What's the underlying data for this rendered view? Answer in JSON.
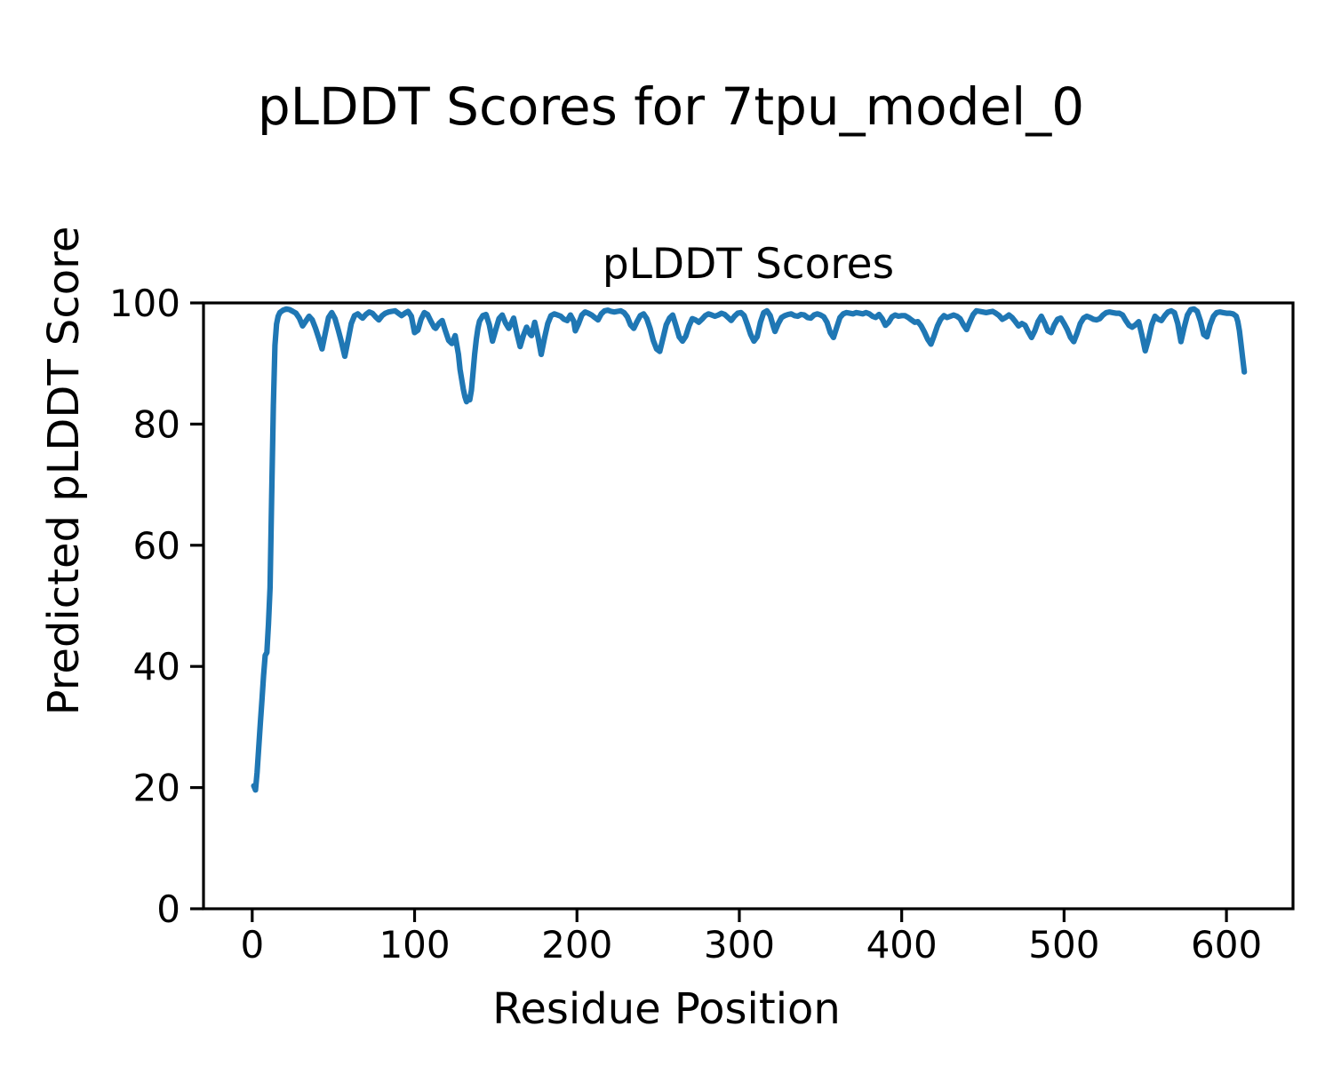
{
  "figure": {
    "suptitle": "pLDDT Scores for 7tpu_model_0",
    "background": "#ffffff",
    "spine_color": "#000000",
    "text_color": "#000000"
  },
  "chart_data": {
    "type": "line",
    "title": "pLDDT Scores",
    "suptitle": "pLDDT Scores for 7tpu_model_0",
    "xlabel": "Residue Position",
    "ylabel": "Predicted pLDDT Score",
    "xlim": [
      -30,
      641
    ],
    "ylim": [
      0,
      100
    ],
    "xticks": [
      0,
      100,
      200,
      300,
      400,
      500,
      600
    ],
    "yticks": [
      0,
      20,
      40,
      60,
      80,
      100
    ],
    "grid": false,
    "legend": "none",
    "line_color": "#1f77b4",
    "series_name": "pLDDT",
    "points": [
      [
        1,
        20.3
      ],
      [
        2,
        19.6
      ],
      [
        3,
        22.5
      ],
      [
        4,
        26.5
      ],
      [
        5,
        30.5
      ],
      [
        6,
        34.5
      ],
      [
        7,
        38.5
      ],
      [
        8,
        41.8
      ],
      [
        9,
        42.3
      ],
      [
        10,
        47
      ],
      [
        11,
        53
      ],
      [
        12,
        68
      ],
      [
        13,
        83
      ],
      [
        14,
        93
      ],
      [
        15,
        96.5
      ],
      [
        16,
        97.8
      ],
      [
        17,
        98.4
      ],
      [
        19,
        98.8
      ],
      [
        21,
        99
      ],
      [
        23,
        98.9
      ],
      [
        25,
        98.6
      ],
      [
        27,
        98.3
      ],
      [
        29,
        97.5
      ],
      [
        31,
        96.2
      ],
      [
        33,
        97
      ],
      [
        35,
        97.8
      ],
      [
        37,
        97.2
      ],
      [
        39,
        95.8
      ],
      [
        41,
        94.2
      ],
      [
        43,
        92.4
      ],
      [
        45,
        95
      ],
      [
        47,
        97.6
      ],
      [
        49,
        98.4
      ],
      [
        51,
        97.4
      ],
      [
        53,
        95.5
      ],
      [
        55,
        93.5
      ],
      [
        57,
        91.2
      ],
      [
        59,
        93.8
      ],
      [
        61,
        96.6
      ],
      [
        63,
        97.9
      ],
      [
        65,
        98.2
      ],
      [
        67,
        97.7
      ],
      [
        68,
        97.5
      ],
      [
        70,
        98.1
      ],
      [
        72,
        98.5
      ],
      [
        74,
        98.3
      ],
      [
        76,
        97.7
      ],
      [
        78,
        97.2
      ],
      [
        80,
        97.9
      ],
      [
        82,
        98.3
      ],
      [
        84,
        98.5
      ],
      [
        86,
        98.6
      ],
      [
        88,
        98.7
      ],
      [
        90,
        98.3
      ],
      [
        92,
        97.9
      ],
      [
        94,
        98.3
      ],
      [
        96,
        98.6
      ],
      [
        98,
        97.8
      ],
      [
        100,
        95.1
      ],
      [
        102,
        95.5
      ],
      [
        104,
        97.3
      ],
      [
        106,
        98.4
      ],
      [
        108,
        98.1
      ],
      [
        110,
        97
      ],
      [
        112,
        96
      ],
      [
        113,
        95.8
      ],
      [
        115,
        96.6
      ],
      [
        117,
        97.1
      ],
      [
        119,
        95.4
      ],
      [
        121,
        93.8
      ],
      [
        123,
        93.3
      ],
      [
        125,
        94.6
      ],
      [
        127,
        91.5
      ],
      [
        128,
        89
      ],
      [
        130,
        85.8
      ],
      [
        131,
        84.5
      ],
      [
        132,
        83.7
      ],
      [
        133,
        84.4
      ],
      [
        134,
        84
      ],
      [
        135,
        85.6
      ],
      [
        136,
        88.5
      ],
      [
        137,
        91.5
      ],
      [
        138,
        94
      ],
      [
        139,
        95.8
      ],
      [
        140,
        97
      ],
      [
        142,
        97.9
      ],
      [
        144,
        98.1
      ],
      [
        146,
        96.4
      ],
      [
        148,
        93.7
      ],
      [
        150,
        95.6
      ],
      [
        152,
        97.4
      ],
      [
        154,
        98
      ],
      [
        156,
        96.7
      ],
      [
        158,
        95.8
      ],
      [
        160,
        96.9
      ],
      [
        161,
        97.5
      ],
      [
        163,
        95
      ],
      [
        165,
        92.8
      ],
      [
        167,
        94.6
      ],
      [
        169,
        96
      ],
      [
        171,
        94.9
      ],
      [
        172,
        94.6
      ],
      [
        174,
        96.8
      ],
      [
        176,
        94.4
      ],
      [
        178,
        91.5
      ],
      [
        180,
        94.2
      ],
      [
        182,
        96.6
      ],
      [
        184,
        97.9
      ],
      [
        186,
        98.2
      ],
      [
        188,
        98
      ],
      [
        190,
        97.8
      ],
      [
        192,
        97.3
      ],
      [
        194,
        97.1
      ],
      [
        196,
        98
      ],
      [
        198,
        97
      ],
      [
        199,
        95.4
      ],
      [
        201,
        96.6
      ],
      [
        203,
        98
      ],
      [
        205,
        98.5
      ],
      [
        207,
        98.3
      ],
      [
        209,
        98
      ],
      [
        211,
        97.6
      ],
      [
        213,
        97.2
      ],
      [
        215,
        98.2
      ],
      [
        217,
        98.7
      ],
      [
        219,
        98.8
      ],
      [
        221,
        98.6
      ],
      [
        223,
        98.5
      ],
      [
        225,
        98.6
      ],
      [
        227,
        98.7
      ],
      [
        229,
        98.4
      ],
      [
        231,
        97.7
      ],
      [
        233,
        96.4
      ],
      [
        235,
        95.8
      ],
      [
        237,
        96.9
      ],
      [
        239,
        97.9
      ],
      [
        241,
        98.2
      ],
      [
        243,
        97.4
      ],
      [
        245,
        95.8
      ],
      [
        247,
        93.8
      ],
      [
        249,
        92.4
      ],
      [
        251,
        92
      ],
      [
        253,
        94.2
      ],
      [
        255,
        96.4
      ],
      [
        257,
        97.5
      ],
      [
        259,
        98
      ],
      [
        261,
        96.2
      ],
      [
        263,
        94.4
      ],
      [
        265,
        93.7
      ],
      [
        267,
        94.5
      ],
      [
        269,
        96.2
      ],
      [
        271,
        97.4
      ],
      [
        273,
        97.2
      ],
      [
        275,
        96.8
      ],
      [
        277,
        97.3
      ],
      [
        279,
        97.9
      ],
      [
        281,
        98.2
      ],
      [
        283,
        98
      ],
      [
        285,
        97.8
      ],
      [
        287,
        98
      ],
      [
        289,
        98.3
      ],
      [
        291,
        98.1
      ],
      [
        293,
        97.6
      ],
      [
        295,
        97.1
      ],
      [
        297,
        97.8
      ],
      [
        299,
        98.3
      ],
      [
        301,
        98.4
      ],
      [
        303,
        97.9
      ],
      [
        305,
        96.4
      ],
      [
        307,
        94.8
      ],
      [
        309,
        93.7
      ],
      [
        311,
        94.4
      ],
      [
        313,
        96.8
      ],
      [
        315,
        98.4
      ],
      [
        317,
        98.7
      ],
      [
        319,
        97.9
      ],
      [
        321,
        96.1
      ],
      [
        322,
        95.3
      ],
      [
        324,
        96.6
      ],
      [
        326,
        97.6
      ],
      [
        328,
        97.9
      ],
      [
        330,
        98.1
      ],
      [
        332,
        98.2
      ],
      [
        334,
        97.9
      ],
      [
        336,
        97.8
      ],
      [
        338,
        98.1
      ],
      [
        340,
        98
      ],
      [
        342,
        97.6
      ],
      [
        344,
        97.5
      ],
      [
        346,
        98
      ],
      [
        348,
        98.2
      ],
      [
        350,
        98
      ],
      [
        352,
        97.7
      ],
      [
        354,
        96.8
      ],
      [
        356,
        95.1
      ],
      [
        358,
        94.3
      ],
      [
        360,
        96
      ],
      [
        362,
        97.6
      ],
      [
        364,
        98.2
      ],
      [
        366,
        98.4
      ],
      [
        368,
        98.3
      ],
      [
        370,
        98.2
      ],
      [
        372,
        98.4
      ],
      [
        374,
        98.3
      ],
      [
        376,
        98.2
      ],
      [
        378,
        98.4
      ],
      [
        380,
        98.2
      ],
      [
        382,
        97.8
      ],
      [
        384,
        97.6
      ],
      [
        386,
        98.1
      ],
      [
        388,
        97.4
      ],
      [
        390,
        96.3
      ],
      [
        392,
        96.8
      ],
      [
        394,
        97.7
      ],
      [
        396,
        98
      ],
      [
        398,
        97.8
      ],
      [
        400,
        97.9
      ],
      [
        402,
        97.9
      ],
      [
        404,
        97.6
      ],
      [
        406,
        97.2
      ],
      [
        408,
        96.8
      ],
      [
        410,
        96.9
      ],
      [
        412,
        96.2
      ],
      [
        414,
        95.2
      ],
      [
        416,
        94
      ],
      [
        418,
        93.2
      ],
      [
        420,
        94.6
      ],
      [
        422,
        96.2
      ],
      [
        424,
        97.3
      ],
      [
        426,
        97.9
      ],
      [
        428,
        97.6
      ],
      [
        430,
        97.8
      ],
      [
        432,
        98
      ],
      [
        434,
        97.8
      ],
      [
        436,
        97.4
      ],
      [
        438,
        96.4
      ],
      [
        440,
        95.6
      ],
      [
        442,
        96.9
      ],
      [
        444,
        98.1
      ],
      [
        446,
        98.7
      ],
      [
        448,
        98.6
      ],
      [
        450,
        98.5
      ],
      [
        452,
        98.4
      ],
      [
        454,
        98.5
      ],
      [
        456,
        98.6
      ],
      [
        458,
        98.3
      ],
      [
        460,
        97.9
      ],
      [
        462,
        97.3
      ],
      [
        464,
        97.6
      ],
      [
        466,
        98
      ],
      [
        468,
        97.6
      ],
      [
        470,
        96.9
      ],
      [
        472,
        96.2
      ],
      [
        474,
        96.6
      ],
      [
        476,
        96.3
      ],
      [
        478,
        95.2
      ],
      [
        480,
        94.3
      ],
      [
        482,
        95.4
      ],
      [
        484,
        96.9
      ],
      [
        486,
        97.8
      ],
      [
        488,
        96.7
      ],
      [
        490,
        95.4
      ],
      [
        492,
        95.1
      ],
      [
        494,
        96.4
      ],
      [
        496,
        97.3
      ],
      [
        498,
        97.5
      ],
      [
        500,
        96.6
      ],
      [
        502,
        95.6
      ],
      [
        504,
        94.3
      ],
      [
        506,
        93.6
      ],
      [
        508,
        95
      ],
      [
        510,
        96.6
      ],
      [
        512,
        97.5
      ],
      [
        514,
        97.8
      ],
      [
        516,
        97.6
      ],
      [
        518,
        97.3
      ],
      [
        520,
        97.2
      ],
      [
        522,
        97.4
      ],
      [
        524,
        98
      ],
      [
        526,
        98.4
      ],
      [
        528,
        98.5
      ],
      [
        530,
        98.4
      ],
      [
        532,
        98.3
      ],
      [
        534,
        98.3
      ],
      [
        536,
        98
      ],
      [
        538,
        97.1
      ],
      [
        540,
        96.3
      ],
      [
        542,
        96
      ],
      [
        544,
        96.4
      ],
      [
        546,
        96.9
      ],
      [
        548,
        94.6
      ],
      [
        550,
        92.1
      ],
      [
        552,
        94
      ],
      [
        554,
        96.4
      ],
      [
        556,
        97.8
      ],
      [
        558,
        97.3
      ],
      [
        560,
        97.1
      ],
      [
        562,
        97.9
      ],
      [
        564,
        98.5
      ],
      [
        566,
        98.7
      ],
      [
        568,
        98.4
      ],
      [
        570,
        96.6
      ],
      [
        572,
        93.6
      ],
      [
        574,
        96
      ],
      [
        576,
        98
      ],
      [
        578,
        98.9
      ],
      [
        580,
        99
      ],
      [
        582,
        98.6
      ],
      [
        584,
        97
      ],
      [
        586,
        94.8
      ],
      [
        588,
        94.4
      ],
      [
        590,
        96.4
      ],
      [
        592,
        97.8
      ],
      [
        594,
        98.4
      ],
      [
        596,
        98.5
      ],
      [
        598,
        98.4
      ],
      [
        600,
        98.3
      ],
      [
        602,
        98.3
      ],
      [
        604,
        98.2
      ],
      [
        606,
        97.8
      ],
      [
        607,
        96.9
      ],
      [
        608,
        95.4
      ],
      [
        609,
        93.2
      ],
      [
        610,
        90.8
      ],
      [
        611,
        88.6
      ]
    ]
  }
}
